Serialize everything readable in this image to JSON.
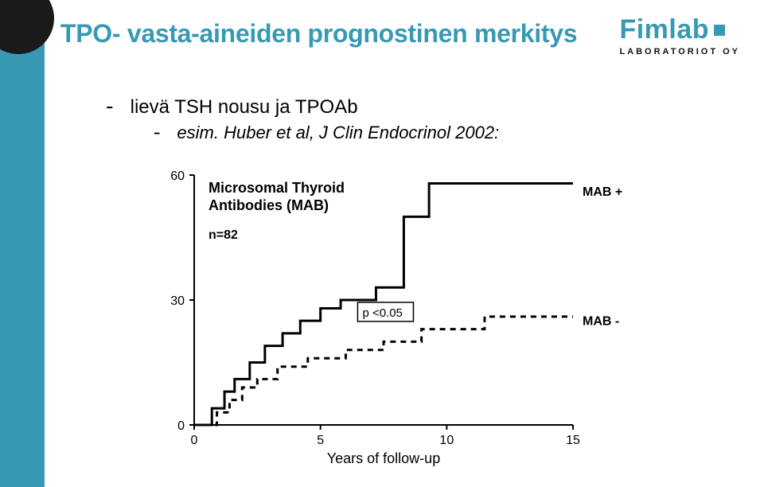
{
  "title": "TPO- vasta-aineiden prognostinen merkitys",
  "logo": {
    "word": "Fimlab",
    "sub": "LABORATORIOT OY"
  },
  "bullets": {
    "b1": "lievä TSH nousu ja TPOAb",
    "b2": "esim. Huber et al, J Clin Endocrinol 2002:"
  },
  "chart": {
    "type": "step-line",
    "xlabel": "Years of follow-up",
    "ylim": [
      0,
      60
    ],
    "yticks": [
      0,
      30,
      60
    ],
    "xlim": [
      0,
      15
    ],
    "xticks": [
      0,
      5,
      10,
      15
    ],
    "axis_color": "#000000",
    "axis_width": 2,
    "grid_on": false,
    "background_color": "#ffffff",
    "label_fontsize": 18,
    "tick_fontsize": 16,
    "annotations": {
      "box_title": "Microsomal Thyroid\nAntibodies (MAB)",
      "n_label": "n=82",
      "p_label": "p <0.05",
      "series_pos_label": "MAB +",
      "series_neg_label": "MAB -"
    },
    "series": [
      {
        "name": "MAB_plus",
        "color": "#000000",
        "linewidth": 3,
        "dash": "none",
        "points": [
          [
            0,
            0
          ],
          [
            0.7,
            0
          ],
          [
            0.7,
            4
          ],
          [
            1.2,
            4
          ],
          [
            1.2,
            8
          ],
          [
            1.6,
            8
          ],
          [
            1.6,
            11
          ],
          [
            2.2,
            11
          ],
          [
            2.2,
            15
          ],
          [
            2.8,
            15
          ],
          [
            2.8,
            19
          ],
          [
            3.5,
            19
          ],
          [
            3.5,
            22
          ],
          [
            4.2,
            22
          ],
          [
            4.2,
            25
          ],
          [
            5.0,
            25
          ],
          [
            5.0,
            28
          ],
          [
            5.8,
            28
          ],
          [
            5.8,
            30
          ],
          [
            7.2,
            30
          ],
          [
            7.2,
            33
          ],
          [
            8.3,
            33
          ],
          [
            8.3,
            50
          ],
          [
            9.3,
            50
          ],
          [
            9.3,
            58
          ],
          [
            15,
            58
          ]
        ]
      },
      {
        "name": "MAB_minus",
        "color": "#000000",
        "linewidth": 3,
        "dash": "7,6",
        "points": [
          [
            0,
            0
          ],
          [
            0.9,
            0
          ],
          [
            0.9,
            3
          ],
          [
            1.4,
            3
          ],
          [
            1.4,
            6
          ],
          [
            1.9,
            6
          ],
          [
            1.9,
            9
          ],
          [
            2.5,
            9
          ],
          [
            2.5,
            11
          ],
          [
            3.3,
            11
          ],
          [
            3.3,
            14
          ],
          [
            4.5,
            14
          ],
          [
            4.5,
            16
          ],
          [
            6.0,
            16
          ],
          [
            6.0,
            18
          ],
          [
            7.5,
            18
          ],
          [
            7.5,
            20
          ],
          [
            9.0,
            20
          ],
          [
            9.0,
            23
          ],
          [
            11.5,
            23
          ],
          [
            11.5,
            26
          ],
          [
            15,
            26
          ]
        ]
      }
    ]
  }
}
